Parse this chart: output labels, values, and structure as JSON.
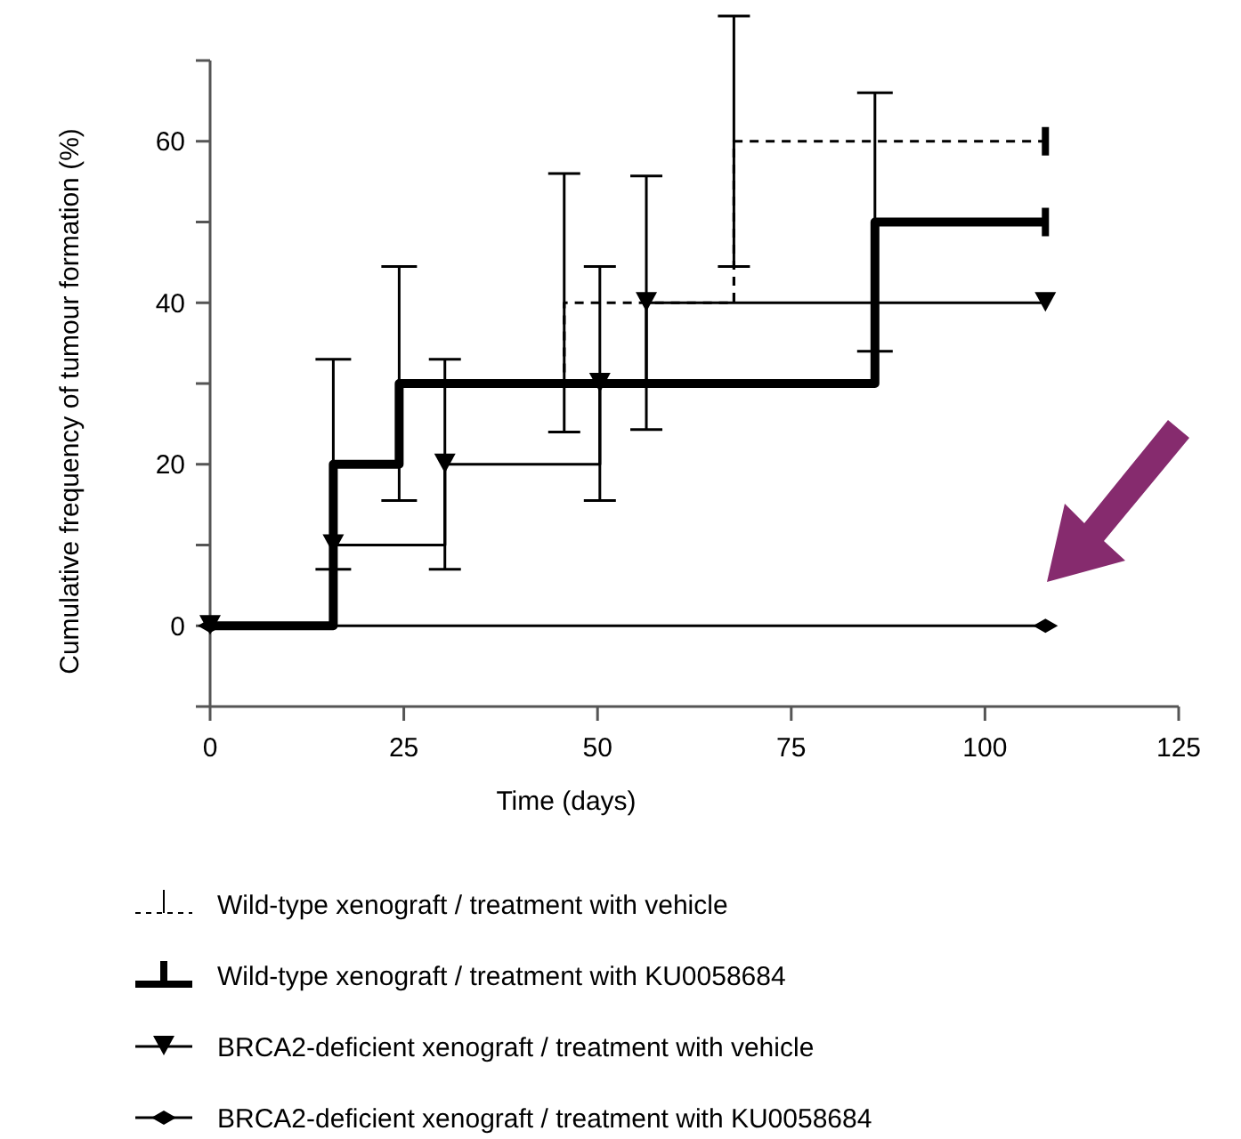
{
  "chart_data": {
    "type": "step",
    "xlabel": "Time (days)",
    "ylabel": "Cumulative frequency of tumour formation (%)",
    "xlim": [
      0,
      125
    ],
    "xticks": [
      0,
      25,
      50,
      75,
      100,
      125
    ],
    "ylim": [
      -10,
      70
    ],
    "yticks": [
      {
        "value": -10,
        "label": null
      },
      0,
      {
        "value": 10,
        "label": null
      },
      20,
      {
        "value": 30,
        "label": null
      },
      40,
      {
        "value": 50,
        "label": null
      },
      60,
      {
        "value": 70,
        "label": null
      }
    ],
    "legend": "bottom",
    "grid": false,
    "series": [
      {
        "name": "Wild-type xenograft / treatment with vehicle",
        "color": "#000000",
        "line_style": "dashed",
        "marker": "none",
        "x": [
          24.4,
          45.7,
          67.6,
          107.8
        ],
        "values": [
          30,
          40,
          60,
          60
        ],
        "errors": [
          null,
          16,
          15.5,
          null
        ]
      },
      {
        "name": "Wild-type xenograft / treatment with KU0058684",
        "color": "#000000",
        "line_style": "solid",
        "marker": "none",
        "x": [
          0,
          15.9,
          24.4,
          85.8,
          107.8
        ],
        "values": [
          0,
          20,
          30,
          50,
          50
        ],
        "errors": [
          null,
          13,
          14.5,
          16,
          null
        ]
      },
      {
        "name": "BRCA2-deficient xenograft / treatment with vehicle",
        "color": "#000000",
        "line_style": "solid",
        "marker": "triangle",
        "x": [
          0,
          15.9,
          30.3,
          50.3,
          56.3,
          107.8
        ],
        "values": [
          0,
          10,
          20,
          30,
          40,
          40
        ],
        "errors": [
          null,
          null,
          13,
          14.5,
          15.7,
          null
        ]
      },
      {
        "name": "BRCA2-deficient xenograft / treatment with KU0058684",
        "color": "#000000",
        "line_style": "solid",
        "marker": "diamond",
        "x": [
          0,
          107.8
        ],
        "values": [
          0,
          0
        ]
      }
    ]
  }
}
